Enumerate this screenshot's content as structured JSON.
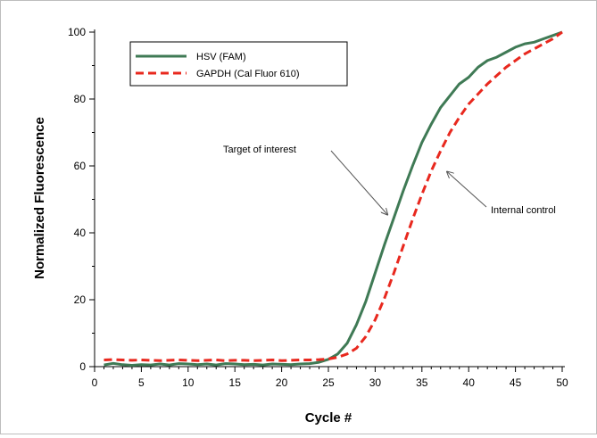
{
  "chart_data": {
    "type": "line",
    "title": "",
    "xlabel": "Cycle #",
    "ylabel": "Normalized Fluorescence",
    "xlim": [
      0,
      50
    ],
    "ylim": [
      0,
      100
    ],
    "xticks": [
      "0",
      "5",
      "10",
      "15",
      "20",
      "25",
      "30",
      "35",
      "40",
      "45",
      "50"
    ],
    "yticks": [
      "0",
      "20",
      "40",
      "60",
      "80",
      "100"
    ],
    "grid": false,
    "legend_position": "top-left",
    "series": [
      {
        "name": "HSV (FAM)",
        "color": "#3f7a55",
        "style": "solid",
        "x": [
          1,
          2,
          3,
          4,
          5,
          6,
          7,
          8,
          9,
          10,
          11,
          12,
          13,
          14,
          15,
          16,
          17,
          18,
          19,
          20,
          21,
          22,
          23,
          24,
          25,
          26,
          27,
          28,
          29,
          30,
          31,
          32,
          33,
          34,
          35,
          36,
          37,
          38,
          39,
          40,
          41,
          42,
          43,
          44,
          45,
          46,
          47,
          48,
          49,
          50
        ],
        "y": [
          0.5,
          1.0,
          0.6,
          0.4,
          0.6,
          0.5,
          0.8,
          0.5,
          0.9,
          0.8,
          0.6,
          0.8,
          0.5,
          0.9,
          0.8,
          0.6,
          0.7,
          0.5,
          0.8,
          0.7,
          0.6,
          0.8,
          0.9,
          1.3,
          2.2,
          3.8,
          7.0,
          12.5,
          19.5,
          28.0,
          36.5,
          44.5,
          52.5,
          60.0,
          67.0,
          72.5,
          77.5,
          81.0,
          84.5,
          86.5,
          89.5,
          91.5,
          92.5,
          94.0,
          95.5,
          96.5,
          97.0,
          98.0,
          99.0,
          100
        ]
      },
      {
        "name": "GAPDH (Cal Fluor 610)",
        "color": "#e8281e",
        "style": "dashed",
        "x": [
          1,
          2,
          3,
          4,
          5,
          6,
          7,
          8,
          9,
          10,
          11,
          12,
          13,
          14,
          15,
          16,
          17,
          18,
          19,
          20,
          21,
          22,
          23,
          24,
          25,
          26,
          27,
          28,
          29,
          30,
          31,
          32,
          33,
          34,
          35,
          36,
          37,
          38,
          39,
          40,
          41,
          42,
          43,
          44,
          45,
          46,
          47,
          48,
          49,
          50
        ],
        "y": [
          2.0,
          2.1,
          2.0,
          1.9,
          2.0,
          1.9,
          1.8,
          1.9,
          2.0,
          1.9,
          1.8,
          1.9,
          2.0,
          1.8,
          1.9,
          1.9,
          1.8,
          1.9,
          2.0,
          1.8,
          1.9,
          2.0,
          2.0,
          2.1,
          2.3,
          2.8,
          3.8,
          5.5,
          9.0,
          14.0,
          20.5,
          28.0,
          36.0,
          44.0,
          51.5,
          58.5,
          64.5,
          70.0,
          74.5,
          78.5,
          81.5,
          84.5,
          87.0,
          89.5,
          91.5,
          93.5,
          95.0,
          96.5,
          98.0,
          100
        ]
      }
    ],
    "annotations": [
      {
        "text": "Target of interest",
        "x": 31.5,
        "y": 46
      },
      {
        "text": "Internal control",
        "x": 37.5,
        "y": 58
      }
    ]
  }
}
